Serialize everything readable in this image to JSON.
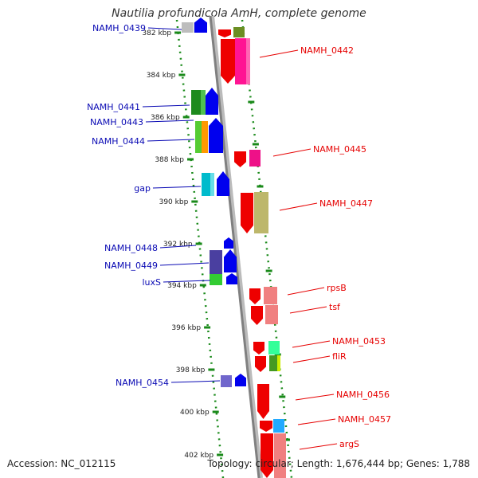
{
  "title": "Nautilia profundicola AmH, complete genome",
  "footer": {
    "accession": "Accession: NC_012115",
    "info": "Topology: circular; Length: 1,676,444 bp; Genes: 1,788"
  },
  "colors": {
    "left_label": "#0a0ab4",
    "right_label": "#e60000",
    "backbone": "#808080",
    "dots": "#1a8a1a"
  },
  "kbp_ticks": [
    {
      "label": "382 kbp"
    },
    {
      "label": "384 kbp"
    },
    {
      "label": "386 kbp"
    },
    {
      "label": "388 kbp"
    },
    {
      "label": "390 kbp"
    },
    {
      "label": "392 kbp"
    },
    {
      "label": "394 kbp"
    },
    {
      "label": "396 kbp"
    },
    {
      "label": "398 kbp"
    },
    {
      "label": "400 kbp"
    },
    {
      "label": "402 kbp"
    }
  ],
  "left_labels": [
    "NAMH_0439",
    "NAMH_0441",
    "NAMH_0443",
    "NAMH_0444",
    "gap",
    "NAMH_0448",
    "NAMH_0449",
    "luxS",
    "NAMH_0454"
  ],
  "right_labels": [
    "NAMH_0442",
    "NAMH_0445",
    "NAMH_0447",
    "rpsB",
    "tsf",
    "NAMH_0453",
    "fliR",
    "NAMH_0456",
    "NAMH_0457",
    "argS"
  ]
}
